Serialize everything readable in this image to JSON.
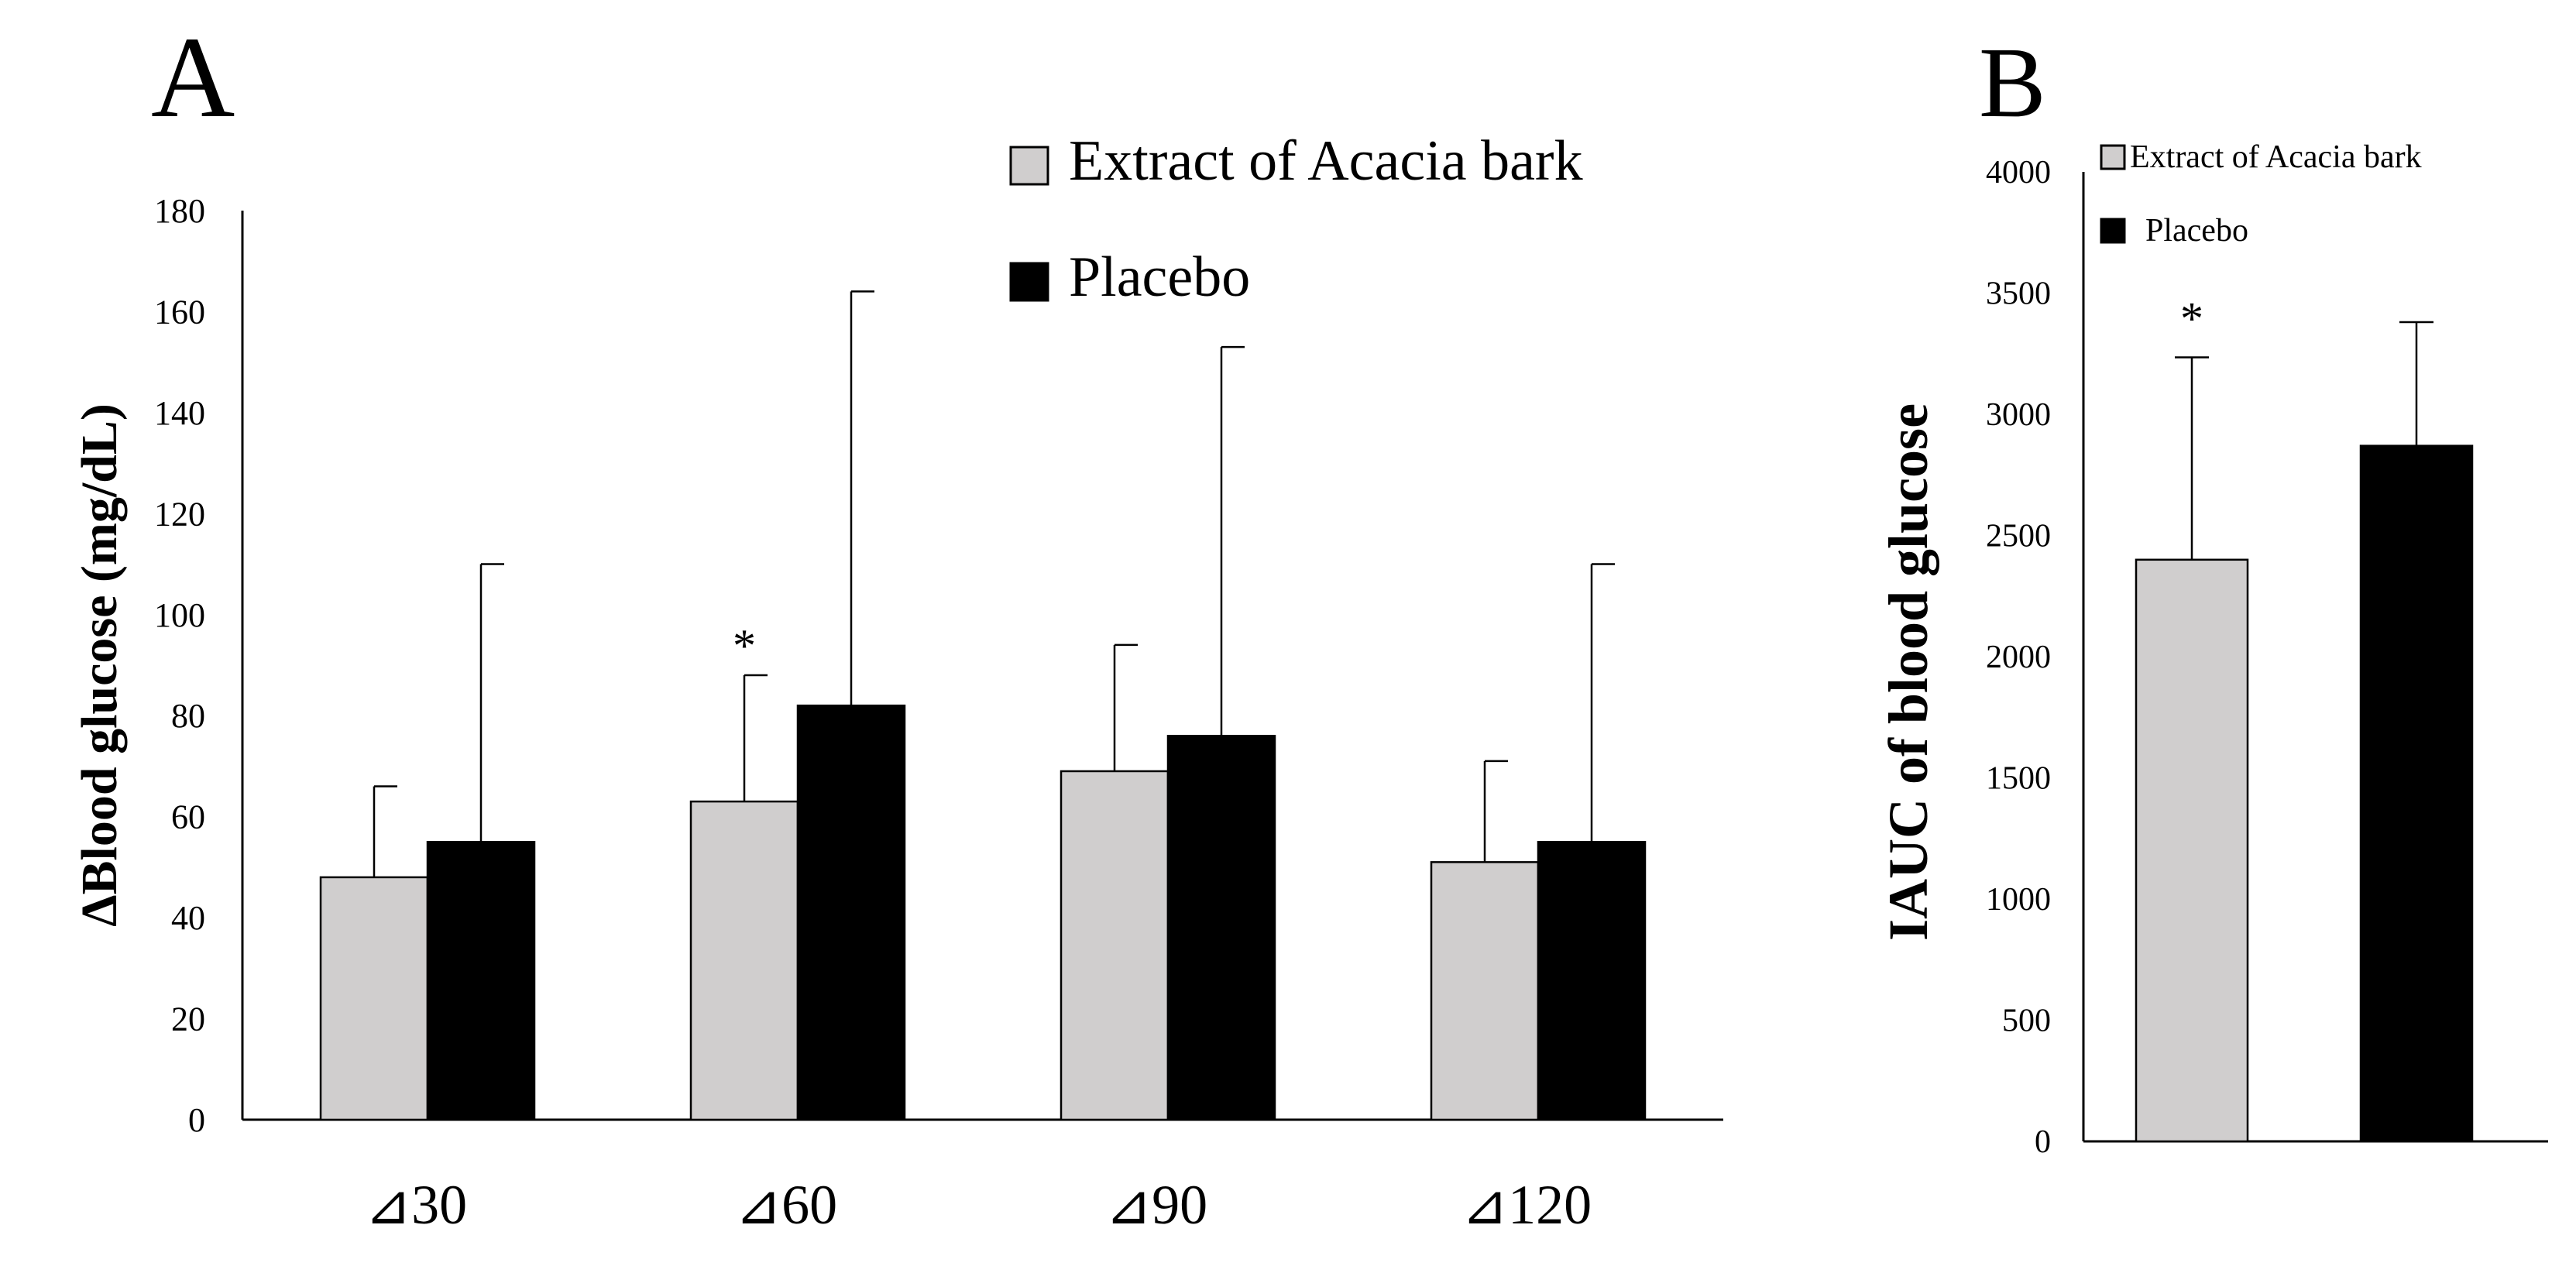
{
  "chart_data": [
    {
      "panel_label": "A",
      "type": "bar",
      "categories": [
        "⊿30",
        "⊿60",
        "⊿90",
        "⊿120"
      ],
      "series": [
        {
          "name": "Extract of Acacia bark",
          "values": [
            48,
            63,
            69,
            51
          ],
          "error": [
            18,
            25,
            25,
            20
          ],
          "color": "#d0cece"
        },
        {
          "name": "Placebo",
          "values": [
            55,
            82,
            76,
            55
          ],
          "error": [
            55,
            82,
            77,
            55
          ],
          "color": "#000000"
        }
      ],
      "ylabel": "ΔBlood glucose (mg/dL)",
      "ylim": [
        0,
        180
      ],
      "yticks": [
        0,
        20,
        40,
        60,
        80,
        100,
        120,
        140,
        160,
        180
      ],
      "significance": [
        {
          "category_index": 1,
          "series_index": 0,
          "label": "*"
        }
      ],
      "legend_position": "top-right",
      "grid": false
    },
    {
      "panel_label": "B",
      "type": "bar",
      "categories": [
        "Extract of Acacia bark",
        "Placebo"
      ],
      "values": [
        2400,
        2870
      ],
      "error": [
        835,
        510
      ],
      "colors": [
        "#d0cece",
        "#000000"
      ],
      "ylabel": "IAUC of blood glucose",
      "ylim": [
        0,
        4000
      ],
      "yticks": [
        0,
        500,
        1000,
        1500,
        2000,
        2500,
        3000,
        3500,
        4000
      ],
      "significance": [
        {
          "bar_index": 0,
          "label": "*"
        }
      ],
      "legend_position": "top",
      "grid": false
    }
  ]
}
